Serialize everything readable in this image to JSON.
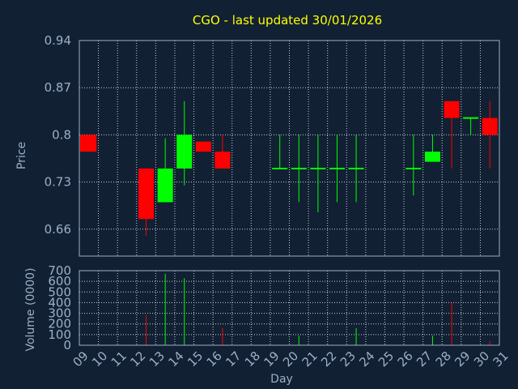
{
  "colors": {
    "background": "#112033",
    "text": "#9bb0c8",
    "title": "#ffff00",
    "grid": "#c8d0dc",
    "frame": "#9bb0c8",
    "up": "#00ff00",
    "down": "#ff0000"
  },
  "chart_data": {
    "type": "candlestick",
    "title": "CGO - last updated 30/01/2026",
    "ylabel": "Price",
    "volume_label": "Volume (0000)",
    "xlabel": "Day",
    "price_ticks": [
      {
        "value": 0.94,
        "label": "0.94"
      },
      {
        "value": 0.87,
        "label": "0.87"
      },
      {
        "value": 0.8,
        "label": "0.8"
      },
      {
        "value": 0.73,
        "label": "0.73"
      },
      {
        "value": 0.66,
        "label": "0.66"
      }
    ],
    "volume_ticks": [
      {
        "value": 700,
        "label": "700"
      },
      {
        "value": 600,
        "label": "600"
      },
      {
        "value": 500,
        "label": "500"
      },
      {
        "value": 400,
        "label": "400"
      },
      {
        "value": 300,
        "label": "300"
      },
      {
        "value": 200,
        "label": "200"
      },
      {
        "value": 100,
        "label": "100"
      },
      {
        "value": 0,
        "label": "0"
      }
    ],
    "x_labels": [
      "09",
      "10",
      "11",
      "12",
      "13",
      "14",
      "15",
      "16",
      "17",
      "18",
      "19",
      "20",
      "21",
      "22",
      "23",
      "24",
      "25",
      "26",
      "27",
      "28",
      "29",
      "30",
      "31"
    ],
    "ylim": [
      0.62,
      0.94
    ],
    "volume_lim": [
      0,
      700
    ],
    "grid": true,
    "candles": [
      {
        "day": 0,
        "open": 0.8,
        "close": 0.775,
        "high": 0.8,
        "low": 0.775,
        "volume": 0
      },
      {
        "day": 3,
        "open": 0.75,
        "close": 0.675,
        "high": 0.75,
        "low": 0.65,
        "volume": 280
      },
      {
        "day": 4,
        "open": 0.7,
        "close": 0.75,
        "high": 0.795,
        "low": 0.7,
        "volume": 670
      },
      {
        "day": 5,
        "open": 0.75,
        "close": 0.8,
        "high": 0.85,
        "low": 0.725,
        "volume": 630
      },
      {
        "day": 6,
        "open": 0.79,
        "close": 0.775,
        "high": 0.79,
        "low": 0.775,
        "volume": 0
      },
      {
        "day": 7,
        "open": 0.775,
        "close": 0.75,
        "high": 0.8,
        "low": 0.75,
        "volume": 160
      },
      {
        "day": 10,
        "open": 0.75,
        "close": 0.75,
        "high": 0.8,
        "low": 0.75,
        "volume": 0
      },
      {
        "day": 11,
        "open": 0.75,
        "close": 0.75,
        "high": 0.8,
        "low": 0.7,
        "volume": 90
      },
      {
        "day": 12,
        "open": 0.75,
        "close": 0.75,
        "high": 0.8,
        "low": 0.685,
        "volume": 0
      },
      {
        "day": 13,
        "open": 0.75,
        "close": 0.75,
        "high": 0.8,
        "low": 0.7,
        "volume": 0
      },
      {
        "day": 14,
        "open": 0.75,
        "close": 0.75,
        "high": 0.8,
        "low": 0.7,
        "volume": 160
      },
      {
        "day": 17,
        "open": 0.75,
        "close": 0.75,
        "high": 0.8,
        "low": 0.71,
        "volume": 0
      },
      {
        "day": 18,
        "open": 0.76,
        "close": 0.775,
        "high": 0.8,
        "low": 0.76,
        "volume": 90
      },
      {
        "day": 19,
        "open": 0.85,
        "close": 0.825,
        "high": 0.85,
        "low": 0.75,
        "volume": 400
      },
      {
        "day": 20,
        "open": 0.825,
        "close": 0.825,
        "high": 0.825,
        "low": 0.8,
        "volume": 0
      },
      {
        "day": 21,
        "open": 0.825,
        "close": 0.8,
        "high": 0.85,
        "low": 0.75,
        "volume": 40
      }
    ]
  }
}
